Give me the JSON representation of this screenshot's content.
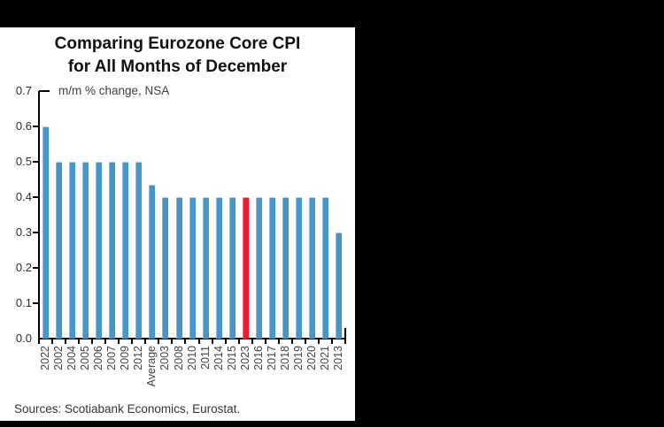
{
  "frame": {
    "background_color": "#000000",
    "panel_color": "#ffffff"
  },
  "chart_data": {
    "type": "bar",
    "title_line1": "Comparing Eurozone Core CPI",
    "title_line2": "for All Months of December",
    "subtitle": "m/m % change, NSA",
    "categories": [
      "2022",
      "2002",
      "2004",
      "2005",
      "2006",
      "2007",
      "2009",
      "2012",
      "Average",
      "2003",
      "2008",
      "2010",
      "2011",
      "2014",
      "2015",
      "2023",
      "2016",
      "2017",
      "2018",
      "2019",
      "2020",
      "2021",
      "2013"
    ],
    "values": [
      0.6,
      0.5,
      0.5,
      0.5,
      0.5,
      0.5,
      0.5,
      0.5,
      0.436,
      0.4,
      0.4,
      0.4,
      0.4,
      0.4,
      0.4,
      0.4,
      0.4,
      0.4,
      0.4,
      0.4,
      0.4,
      0.4,
      0.3
    ],
    "highlight_category": "2023",
    "bar_color": "#4696CC",
    "highlight_color": "#EC1C2D",
    "axis_color": "#000000",
    "ylim": [
      0,
      0.7
    ],
    "ytick_step": 0.1,
    "ytick_labels": [
      "0.0",
      "0.1",
      "0.2",
      "0.3",
      "0.4",
      "0.5",
      "0.6",
      "0.7"
    ],
    "grid": false,
    "legend": "none"
  },
  "footer": {
    "sources": "Sources: Scotiabank Economics, Eurostat."
  }
}
